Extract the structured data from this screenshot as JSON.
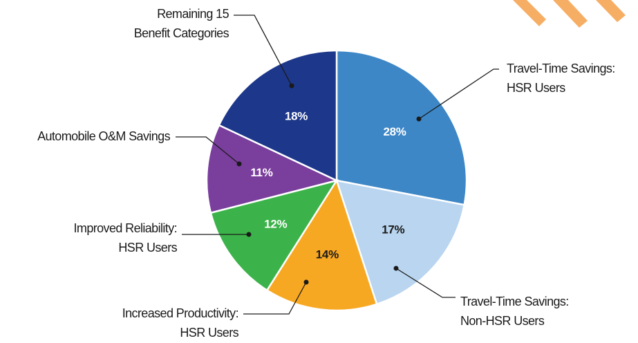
{
  "chart_data": {
    "type": "pie",
    "labels": [
      [
        "Travel-Time Savings:",
        "HSR Users"
      ],
      [
        "Travel-Time Savings:",
        "Non-HSR Users"
      ],
      [
        "Increased Productivity:",
        "HSR Users"
      ],
      [
        "Improved Reliability:",
        "HSR Users"
      ],
      [
        "Automobile O&M Savings"
      ],
      [
        "Remaining 15",
        "Benefit Categories"
      ]
    ],
    "values": [
      28,
      17,
      14,
      12,
      11,
      18
    ],
    "value_labels": [
      "28%",
      "17%",
      "14%",
      "12%",
      "11%",
      "18%"
    ],
    "colors": [
      "#3d87c7",
      "#b9d5ef",
      "#f7a823",
      "#3cb34a",
      "#7a3e9d",
      "#1d378a"
    ]
  }
}
